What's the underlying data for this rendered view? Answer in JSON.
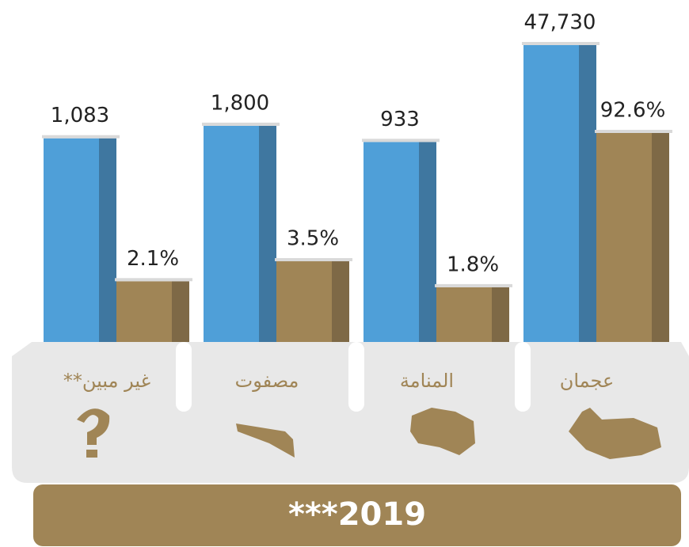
{
  "chart_data": {
    "type": "bar",
    "yscale": "log",
    "categories": [
      "غير مبين**",
      "مصفوت",
      "المنامة",
      "عجمان"
    ],
    "series": [
      {
        "color": "#4f9fd8",
        "side_color": "#3f77a0",
        "values": [
          1083,
          1800,
          933,
          47730
        ],
        "value_labels": [
          "1,083",
          "1,800",
          "933",
          "47,730"
        ]
      },
      {
        "color": "#a08556",
        "side_color": "#7e6946",
        "values": [
          2.1,
          3.5,
          1.8,
          92.6
        ],
        "value_labels": [
          "2.1%",
          "3.5%",
          "1.8%",
          "92.6%"
        ]
      }
    ],
    "footer": "***2019"
  }
}
